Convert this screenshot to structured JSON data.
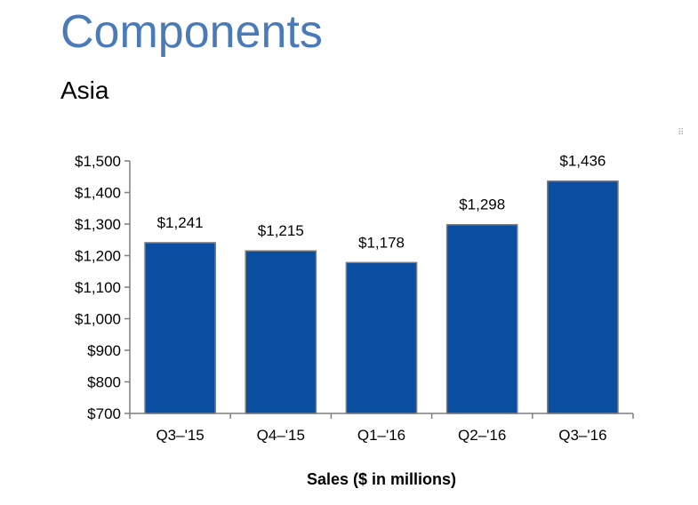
{
  "header": {
    "title": "Components",
    "subtitle": "Asia"
  },
  "chart_data": {
    "type": "bar",
    "categories": [
      "Q3–'15",
      "Q4–'15",
      "Q1–'16",
      "Q2–'16",
      "Q3–'16"
    ],
    "values": [
      1241,
      1215,
      1178,
      1298,
      1436
    ],
    "data_labels": [
      "$1,241",
      "$1,215",
      "$1,178",
      "$1,298",
      "$1,436"
    ],
    "xlabel": "Sales ($ in millions)",
    "ylabel": "",
    "ylim": [
      700,
      1500
    ],
    "yticks": [
      700,
      800,
      900,
      1000,
      1100,
      1200,
      1300,
      1400,
      1500
    ],
    "ytick_labels": [
      "$700",
      "$800",
      "$900",
      "$1,000",
      "$1,100",
      "$1,200",
      "$1,300",
      "$1,400",
      "$1,500"
    ],
    "grid": false,
    "colors": {
      "bar_fill": "#0a4ea2",
      "bar_edge": "#7f7f7f",
      "axis": "#7f7f7f"
    }
  }
}
